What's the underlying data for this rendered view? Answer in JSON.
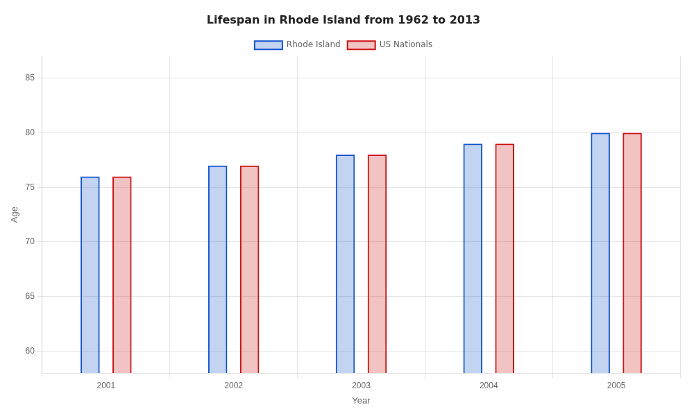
{
  "chart_data": {
    "type": "bar",
    "title": "Lifespan in Rhode Island from 1962 to 2013",
    "xlabel": "Year",
    "ylabel": "Age",
    "categories": [
      "2001",
      "2002",
      "2003",
      "2004",
      "2005"
    ],
    "series": [
      {
        "name": "Rhode Island",
        "color": "#1155cc",
        "values": [
          76,
          77,
          78,
          79,
          80
        ]
      },
      {
        "name": "US Nationals",
        "color": "#cc1111",
        "values": [
          76,
          77,
          78,
          79,
          80
        ]
      }
    ],
    "ylim": [
      58,
      87
    ],
    "yticks": [
      60,
      65,
      70,
      75,
      80,
      85
    ],
    "grid": true,
    "legend": "top"
  }
}
